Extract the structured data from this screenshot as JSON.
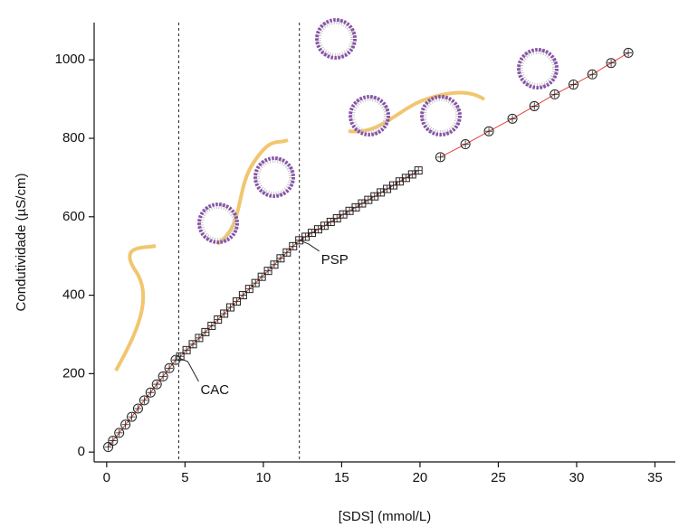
{
  "chart_data": {
    "type": "scatter",
    "x_label": "[SDS] (mmol/L)",
    "y_label": "Condutividade (µS/cm)",
    "xlim": [
      -0.8,
      36.3
    ],
    "ylim": [
      -25,
      1095
    ],
    "xticks": [
      0,
      5,
      10,
      15,
      20,
      25,
      30,
      35
    ],
    "yticks": [
      0,
      200,
      400,
      600,
      800,
      1000
    ],
    "line_color": "#e0443a",
    "marker_color": "#222",
    "series": [
      {
        "marker": "circle",
        "x": [
          0.1,
          0.4,
          0.8,
          1.2,
          1.6,
          2.0,
          2.4,
          2.8,
          3.2,
          3.6,
          4.0,
          4.4
        ],
        "values": [
          13,
          29,
          49,
          70,
          90,
          111,
          132,
          152,
          173,
          193,
          214,
          235
        ]
      },
      {
        "marker": "square",
        "x": [
          4.7,
          5.1,
          5.5,
          5.9,
          6.3,
          6.7,
          7.1,
          7.5,
          7.9,
          8.3,
          8.7,
          9.1,
          9.5,
          9.9,
          10.3,
          10.7,
          11.1,
          11.5,
          11.9,
          12.3,
          12.7,
          13.1,
          13.5,
          13.9,
          14.3,
          14.7,
          15.1,
          15.5,
          15.9,
          16.3,
          16.7,
          17.1,
          17.5,
          17.9,
          18.3,
          18.7,
          19.1,
          19.5,
          19.9
        ],
        "values": [
          244,
          260,
          275,
          291,
          306,
          322,
          338,
          353,
          369,
          384,
          400,
          416,
          431,
          447,
          462,
          478,
          494,
          509,
          525,
          540,
          549,
          559,
          568,
          577,
          587,
          596,
          606,
          615,
          624,
          634,
          643,
          652,
          662,
          671,
          680,
          690,
          699,
          708,
          718
        ]
      },
      {
        "marker": "circle",
        "x": [
          21.3,
          22.9,
          24.4,
          25.9,
          27.3,
          28.6,
          29.8,
          31.0,
          32.2,
          33.3
        ],
        "values": [
          752,
          785,
          818,
          850,
          882,
          912,
          937,
          963,
          992,
          1018
        ]
      }
    ],
    "annotations": [
      {
        "label": "CAC",
        "x": 4.6,
        "y": 240
      },
      {
        "label": "PSP",
        "x": 12.3,
        "y": 540
      }
    ]
  }
}
